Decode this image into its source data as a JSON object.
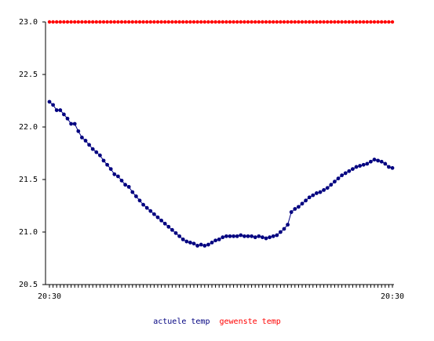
{
  "chart_data": {
    "type": "line",
    "ylim": [
      20.5,
      23.0
    ],
    "y_ticks": [
      "23.0",
      "22.5",
      "22.0",
      "21.5",
      "21.0",
      "20.5"
    ],
    "x_tick_labels": [
      "20:30",
      "20:30"
    ],
    "grid": false,
    "legend_position": "bottom-center",
    "series": [
      {
        "name": "actuele temp",
        "color": "#000080",
        "values": [
          22.24,
          22.21,
          22.16,
          22.16,
          22.12,
          22.08,
          22.03,
          22.03,
          21.96,
          21.9,
          21.87,
          21.83,
          21.79,
          21.76,
          21.73,
          21.68,
          21.64,
          21.6,
          21.55,
          21.53,
          21.49,
          21.45,
          21.43,
          21.38,
          21.34,
          21.3,
          21.26,
          21.23,
          21.2,
          21.17,
          21.14,
          21.11,
          21.08,
          21.05,
          21.02,
          20.99,
          20.96,
          20.93,
          20.91,
          20.9,
          20.89,
          20.87,
          20.88,
          20.87,
          20.88,
          20.9,
          20.92,
          20.93,
          20.95,
          20.96,
          20.96,
          20.96,
          20.96,
          20.97,
          20.96,
          20.96,
          20.96,
          20.95,
          20.96,
          20.95,
          20.94,
          20.95,
          20.96,
          20.97,
          21.0,
          21.03,
          21.07,
          21.19,
          21.22,
          21.24,
          21.27,
          21.3,
          21.33,
          21.35,
          21.37,
          21.38,
          21.4,
          21.42,
          21.45,
          21.48,
          21.51,
          21.54,
          21.56,
          21.58,
          21.6,
          21.62,
          21.63,
          21.64,
          21.65,
          21.67,
          21.69,
          21.68,
          21.67,
          21.65,
          21.62,
          21.61
        ]
      },
      {
        "name": "gewenste temp",
        "color": "#ff0000",
        "values": [
          23.0
        ]
      }
    ]
  }
}
